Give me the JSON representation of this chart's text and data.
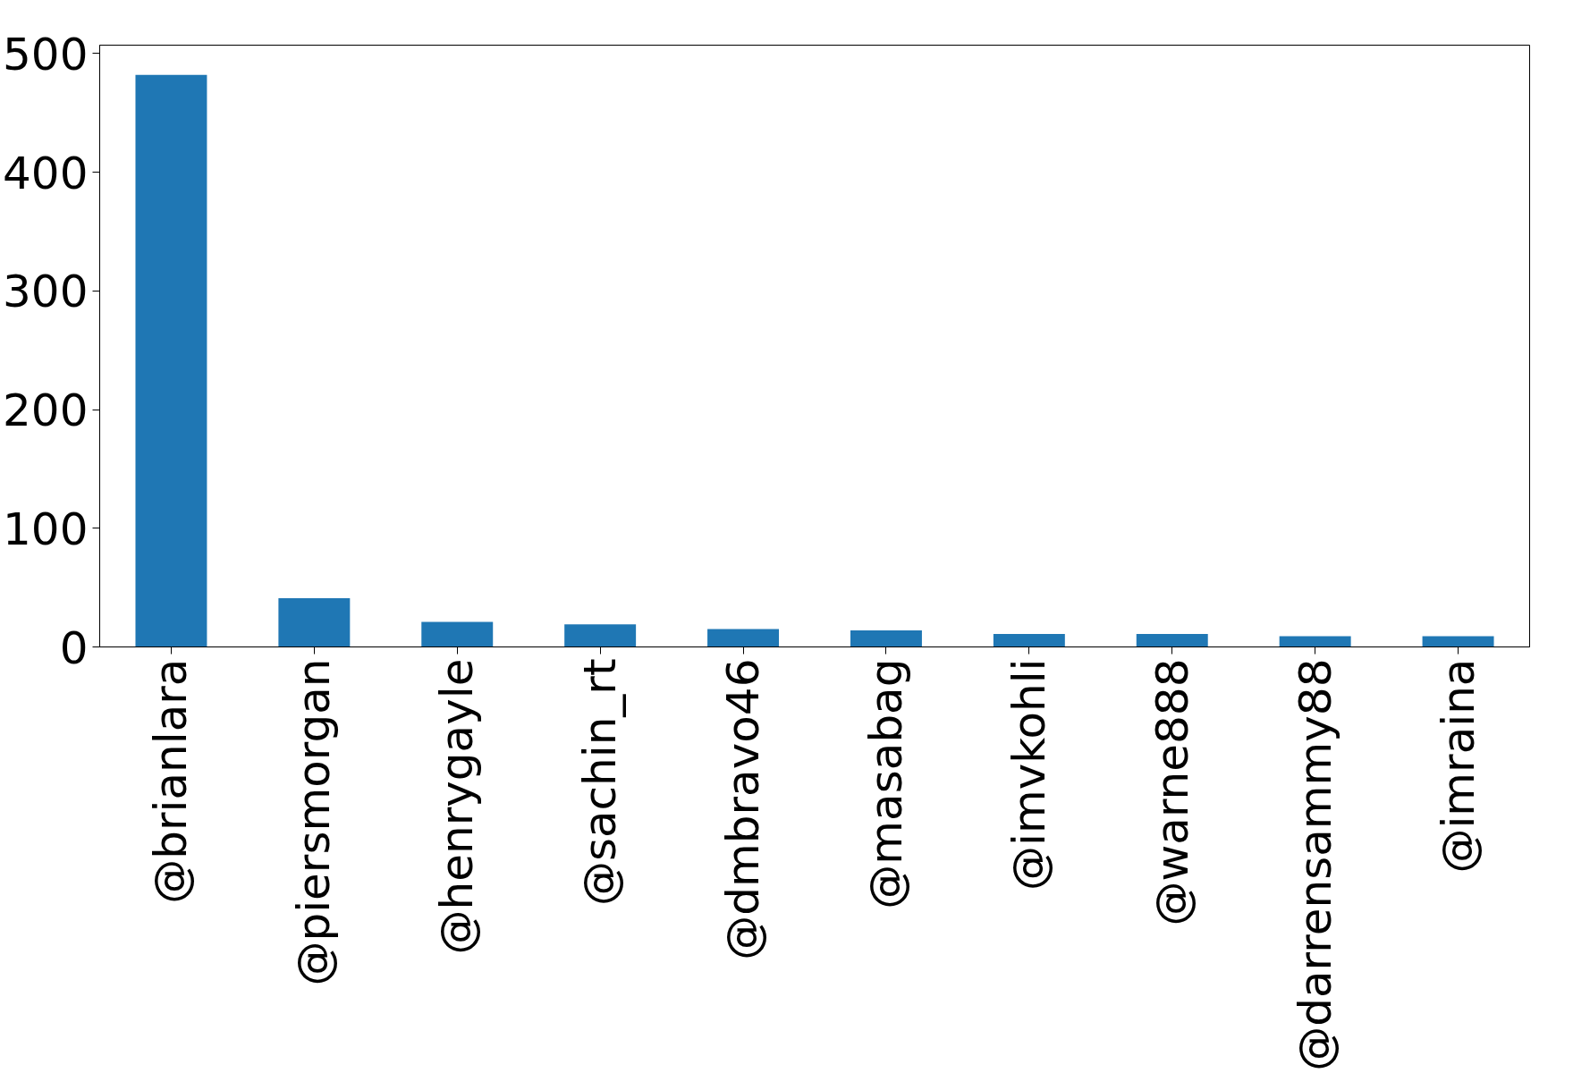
{
  "chart_data": {
    "type": "bar",
    "categories": [
      "@brianlara",
      "@piersmorgan",
      "@henrygayle",
      "@sachin_rt",
      "@dmbravo46",
      "@masabag",
      "@imvkohli",
      "@warne888",
      "@darrensammy88",
      "@imraina"
    ],
    "values": [
      482,
      41,
      21,
      19,
      15,
      14,
      11,
      11,
      9,
      9
    ],
    "color": "#1f77b4",
    "ylim": [
      0,
      507
    ],
    "yticks": [
      0,
      100,
      200,
      300,
      400,
      500
    ],
    "grid": false
  }
}
